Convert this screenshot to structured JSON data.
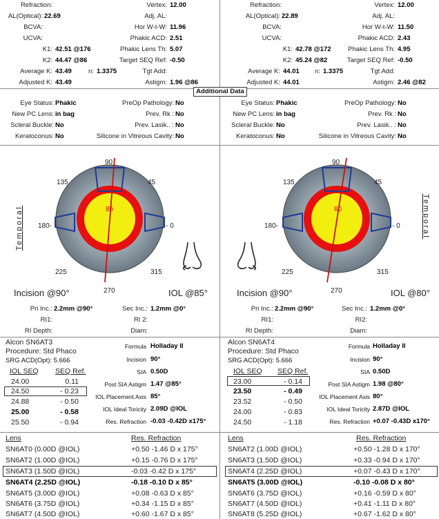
{
  "left": {
    "biometry": {
      "refraction_lbl": "Refraction:",
      "vertex_lbl": "Vertex:",
      "vertex": "12.00",
      "al_lbl": "AL(Optical):",
      "al": "22.69",
      "adjal_lbl": "Adj. AL:",
      "bcva_lbl": "BCVA:",
      "hwtw_lbl": "Hor W-t-W:",
      "hwtw": "11.96",
      "ucva_lbl": "UCVA:",
      "acd_lbl": "Phakic ACD:",
      "acd": "2.51",
      "k1_lbl": "K1:",
      "k1": "42.51 @176",
      "lens_lbl": "Phakic Lens Th:",
      "lens": "5.07",
      "k2_lbl": "K2:",
      "k2": "44.47 @86",
      "tseq_lbl": "Target SEQ Ref:",
      "tseq": "-0.50",
      "avgk_lbl": "Average K:",
      "avgk": "43.49",
      "n_lbl": "n:",
      "n": "1.3375",
      "tgt_lbl": "Tgt Add:",
      "adjk_lbl": "Adjusted K:",
      "adjk": "43.49",
      "astig_lbl": "Astigm:",
      "astig": "1.96 @86"
    },
    "additional": {
      "eye_lbl": "Eye Status:",
      "eye": "Phakic",
      "preop_lbl": "PreOp Pathology:",
      "preop": "No",
      "pc_lbl": "New PC Lens:",
      "pc": "in bag",
      "rk_lbl": "Prev. Rk :",
      "rk": "No",
      "sb_lbl": "Scleral Buckle:",
      "sb": "No",
      "lasik_lbl": "Prev. Lasik.. :",
      "lasik": "No",
      "kc_lbl": "Keratoconus:",
      "kc": "No",
      "sil_lbl": "Silicone in Vitreous Cavity:",
      "sil": "No"
    },
    "diagram": {
      "a90": "90",
      "a45": "45",
      "a135": "135",
      "a180": "180-",
      "a0": "- 0",
      "a225": "225",
      "a315": "315",
      "a270": "270",
      "axis": "85",
      "side": "Temporal",
      "incision": "Incision @90°",
      "iol": "IOL @85°"
    },
    "incision_info": {
      "pri_lbl": "Pri Inc.:",
      "pri": "2.2mm @90°",
      "sec_lbl": "Sec Inc.:",
      "sec": "1.2mm @0°",
      "ri1_lbl": "RI1:",
      "ri2_lbl": "RI 2:",
      "rid_lbl": "RI Depth:",
      "diam_lbl": "Diam:"
    },
    "iol": {
      "model": "Alcon SN6AT3",
      "procedure": "Procedure: Std Phaco",
      "srg": "SRG ACD(Opt): 5.666",
      "formula_lbl": "Formula",
      "formula": "Holladay II",
      "incision_lbl": "Incision",
      "incision": "90°",
      "sia_lbl": "SIA",
      "sia": "0.50D",
      "psia_lbl": "Post SIA Astigm",
      "psia": "1.47 @85°",
      "axis_lbl": "IOL Placement Axis",
      "axis": "85°",
      "toric_lbl": "IOL Ideal Toricity",
      "toric": "2.09D @IOL",
      "resref_lbl": "Res. Refraction",
      "resref": "-0.03 -0.42D x175°",
      "hdr_seq": "IOL SEQ",
      "hdr_ref": "SEQ Ref.",
      "rows": [
        {
          "seq": "24.00",
          "ref": "0.11"
        },
        {
          "seq": "24.50",
          "ref": "- 0.23"
        },
        {
          "seq": "24.88",
          "ref": "- 0.50"
        },
        {
          "seq": "25.00",
          "ref": "- 0.58"
        },
        {
          "seq": "25.50",
          "ref": "- 0.94"
        }
      ]
    },
    "lens_table": {
      "hdr_lens": "Lens",
      "hdr_res": "Res. Refraction",
      "rows": [
        {
          "lens": "SN6AT0 (0.00D @IOL)",
          "res": "+0.50 -1.46 D x 175°"
        },
        {
          "lens": "SN6AT2 (1.00D @IOL)",
          "res": "+0.15 -0.76 D x 175°"
        },
        {
          "lens": "SN6AT3 (1.50D @IOL)",
          "res": "-0.03 -0.42 D x 175°"
        },
        {
          "lens": "SN6AT4 (2.25D @IOL)",
          "res": "-0.18 -0.10 D x 85°"
        },
        {
          "lens": "SN6AT5 (3.00D @IOL)",
          "res": "+0.08 -0.63 D x 85°"
        },
        {
          "lens": "SN6AT6 (3.75D @IOL)",
          "res": "+0.34 -1.15 D x 85°"
        },
        {
          "lens": "SN6AT7 (4.50D @IOL)",
          "res": "+0.60 -1.67 D x 85°"
        }
      ]
    }
  },
  "right": {
    "biometry": {
      "refraction_lbl": "Refraction:",
      "vertex_lbl": "Vertex:",
      "vertex": "12.00",
      "al_lbl": "AL(Optical):",
      "al": "22.89",
      "adjal_lbl": "Adj. AL:",
      "bcva_lbl": "BCVA:",
      "hwtw_lbl": "Hor W-t-W:",
      "hwtw": "11.50",
      "ucva_lbl": "UCVA:",
      "acd_lbl": "Phakic ACD:",
      "acd": "2.43",
      "k1_lbl": "K1:",
      "k1": "42.78 @172",
      "lens_lbl": "Phakic Lens Th:",
      "lens": "4.95",
      "k2_lbl": "K2:",
      "k2": "45.24 @82",
      "tseq_lbl": "Target SEQ Ref:",
      "tseq": "-0.50",
      "avgk_lbl": "Average K:",
      "avgk": "44.01",
      "n_lbl": "n:",
      "n": "1.3375",
      "tgt_lbl": "Tgt Add:",
      "adjk_lbl": "Adjusted K:",
      "adjk": "44.01",
      "astig_lbl": "Astigm:",
      "astig": "2.46 @82"
    },
    "additional": {
      "eye_lbl": "Eye Status:",
      "eye": "Phakic",
      "preop_lbl": "PreOp Pathology:",
      "preop": "No",
      "pc_lbl": "New PC Lens:",
      "pc": "in bag",
      "rk_lbl": "Prev. Rk :",
      "rk": "No",
      "sb_lbl": "Scleral Buckle:",
      "sb": "No",
      "lasik_lbl": "Prev. Lasik.. :",
      "lasik": "No",
      "kc_lbl": "Keratoconus:",
      "kc": "No",
      "sil_lbl": "Silicone in Vitreous Cavity:",
      "sil": "No"
    },
    "diagram": {
      "a90": "90",
      "a45": "45",
      "a135": "135",
      "a180": "180-",
      "a0": "- 0",
      "a225": "225",
      "a315": "315",
      "a270": "270",
      "axis": "80",
      "side": "Temporal",
      "incision": "Incision @90°",
      "iol": "IOL @80°"
    },
    "incision_info": {
      "pri_lbl": "Pri Inc.:",
      "pri": "2.2mm @90°",
      "sec_lbl": "Sec Inc.:",
      "sec": "1.2mm @0°",
      "ri1_lbl": "RI1:",
      "ri2_lbl": "RI2:",
      "rid_lbl": "RI Depth:",
      "diam_lbl": "Diam:"
    },
    "iol": {
      "model": "Alcon SN6AT4",
      "procedure": "Procedure: Std Phaco",
      "srg": "SRG ACD(Opt): 5.666",
      "formula_lbl": "Formula",
      "formula": "Holladay II",
      "incision_lbl": "Incision",
      "incision": "90°",
      "sia_lbl": "SIA",
      "sia": "0.50D",
      "psia_lbl": "Post SIA Astigm",
      "psia": "1.98 @80°",
      "axis_lbl": "IOL Placement Axis",
      "axis": "80°",
      "toric_lbl": "IOL Ideal Toricity",
      "toric": "2.87D @IOL",
      "resref_lbl": "Res. Refraction",
      "resref": "+0.07 -0.43D x170°",
      "hdr_seq": "IOL SEQ",
      "hdr_ref": "SEQ Ref.",
      "rows": [
        {
          "seq": "23.00",
          "ref": "- 0.14"
        },
        {
          "seq": "23.50",
          "ref": "- 0.49"
        },
        {
          "seq": "23.52",
          "ref": "- 0.50"
        },
        {
          "seq": "24.00",
          "ref": "- 0.83"
        },
        {
          "seq": "24.50",
          "ref": "- 1.18"
        }
      ]
    },
    "lens_table": {
      "hdr_lens": "Lens",
      "hdr_res": "Res. Refraction",
      "rows": [
        {
          "lens": "SN6AT2 (1.00D @IOL)",
          "res": "+0.50 -1.28 D x 170°"
        },
        {
          "lens": "SN6AT3 (1.50D @IOL)",
          "res": "+0.33 -0.94 D x 170°"
        },
        {
          "lens": "SN6AT4 (2.25D @IOL)",
          "res": "+0.07 -0.43 D x 170°"
        },
        {
          "lens": "SN6AT5 (3.00D @IOL)",
          "res": "-0.10 -0.08 D x 80°"
        },
        {
          "lens": "SN6AT6 (3.75D @IOL)",
          "res": "+0.16 -0.59 D x 80°"
        },
        {
          "lens": "SN6AT7 (4.50D @IOL)",
          "res": "+0.41 -1.11 D x 80°"
        },
        {
          "lens": "SN6AT8 (5.25D @IOL)",
          "res": "+0.67 -1.62 D x 80°"
        }
      ]
    }
  },
  "additional_data_title": "Additional Data",
  "colors": {
    "iris": "#8e9ba4",
    "red_ring": "#e61010",
    "yellow": "#f2ee10",
    "marker": "#1d3a99",
    "axis_line": "#cc1010"
  }
}
